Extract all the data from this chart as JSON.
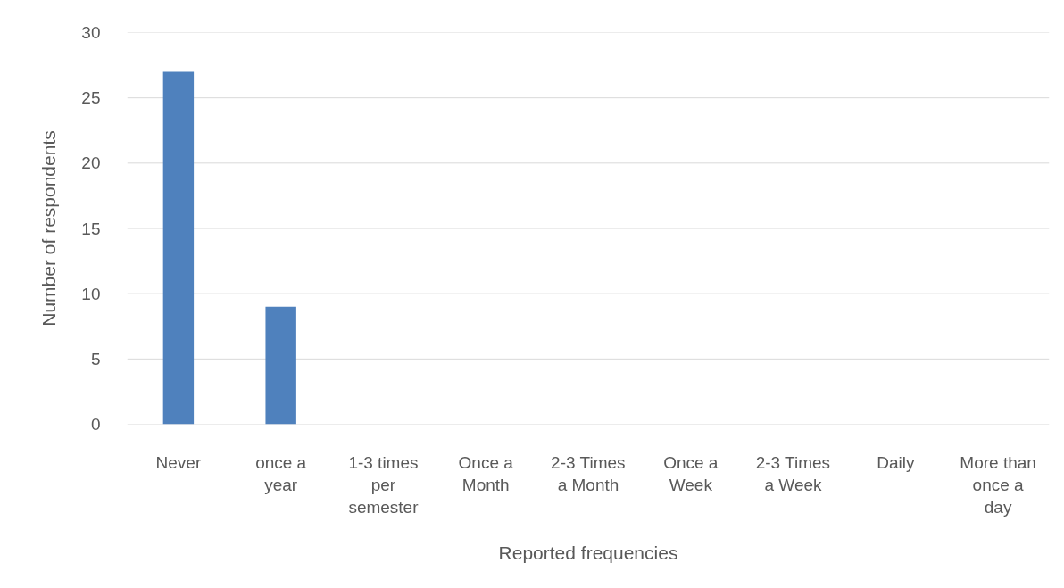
{
  "chart_data": {
    "type": "bar",
    "xlabel": "Reported frequencies",
    "ylabel": "Number of respondents",
    "categories": [
      "Never",
      "once a year",
      "1-3 times per semester",
      "Once a Month",
      "2-3 Times a Month",
      "Once a Week",
      "2-3 Times a Week",
      "Daily",
      "More than once a day"
    ],
    "values": [
      27,
      9,
      0,
      0,
      0,
      0,
      0,
      0,
      0
    ],
    "color": "#4f81bd",
    "ylim": [
      0,
      30
    ],
    "yticks": [
      0,
      5,
      10,
      15,
      20,
      25,
      30
    ],
    "grid": "y"
  }
}
